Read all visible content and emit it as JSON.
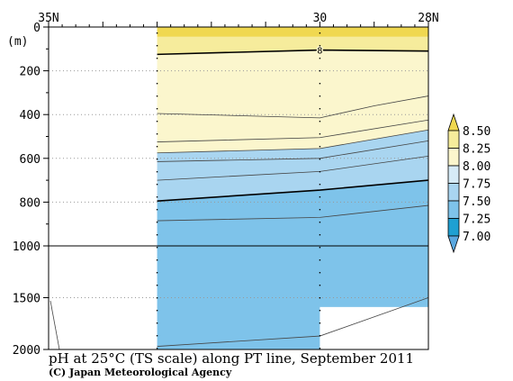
{
  "chart_data": {
    "type": "contour",
    "title": "pH at 25°C (TS scale) along PT line, September 2011",
    "credit": "(C) Japan Meteorological Agency",
    "ylabel": "(m)",
    "x_ticks": [
      {
        "label": "35N",
        "lat": 35
      },
      {
        "label": "30",
        "lat": 30
      },
      {
        "label": "28N",
        "lat": 28
      }
    ],
    "y_ticks": [
      {
        "label": "0",
        "depth": 0
      },
      {
        "label": "200",
        "depth": 200
      },
      {
        "label": "400",
        "depth": 400
      },
      {
        "label": "600",
        "depth": 600
      },
      {
        "label": "800",
        "depth": 800
      },
      {
        "label": "1000",
        "depth": 1000
      },
      {
        "label": "1500",
        "depth": 1500
      },
      {
        "label": "2000",
        "depth": 2000
      }
    ],
    "y_axis": {
      "upper_segment": [
        0,
        1000
      ],
      "lower_segment": [
        1000,
        2000
      ],
      "split_at": 1000
    },
    "x_range": [
      35,
      28
    ],
    "station_lats": [
      33,
      30
    ],
    "data_lat_range": [
      33,
      28
    ],
    "legend": {
      "levels": [
        "8.50",
        "8.25",
        "8.00",
        "7.75",
        "7.50",
        "7.25",
        "7.00"
      ],
      "colors": [
        "#f0d850",
        "#f6ec9c",
        "#fbf6cd",
        "#d6ebf7",
        "#a9d5f0",
        "#7ec3ea",
        "#1fa0d2",
        "#5aa8e0"
      ]
    },
    "contour_label": "8",
    "contours": [
      {
        "value": 8.0,
        "bold": true,
        "points": [
          [
            33,
            125
          ],
          [
            30,
            105
          ],
          [
            28,
            110
          ]
        ]
      },
      {
        "value": 7.9,
        "bold": false,
        "points": [
          [
            33,
            395
          ],
          [
            30,
            415
          ],
          [
            29,
            360
          ],
          [
            28,
            315
          ]
        ]
      },
      {
        "value": 7.8,
        "bold": false,
        "points": [
          [
            33,
            525
          ],
          [
            30,
            505
          ],
          [
            28,
            425
          ]
        ]
      },
      {
        "value": 7.75,
        "bold": false,
        "points": [
          [
            33,
            575
          ],
          [
            30,
            555
          ],
          [
            28,
            470
          ]
        ]
      },
      {
        "value": 7.7,
        "bold": false,
        "points": [
          [
            33,
            615
          ],
          [
            30,
            600
          ],
          [
            28,
            520
          ]
        ]
      },
      {
        "value": 7.65,
        "bold": false,
        "points": [
          [
            33,
            700
          ],
          [
            30,
            660
          ],
          [
            28,
            590
          ]
        ]
      },
      {
        "value": 7.5,
        "bold": true,
        "points": [
          [
            33,
            795
          ],
          [
            30,
            745
          ],
          [
            28,
            700
          ]
        ]
      },
      {
        "value": 7.45,
        "bold": false,
        "points": [
          [
            33,
            885
          ],
          [
            30,
            870
          ],
          [
            28,
            815
          ]
        ]
      },
      {
        "value": 7.4,
        "bold": false,
        "points": [
          [
            33,
            1970
          ],
          [
            30,
            1870
          ],
          [
            28,
            1500
          ]
        ]
      }
    ]
  }
}
